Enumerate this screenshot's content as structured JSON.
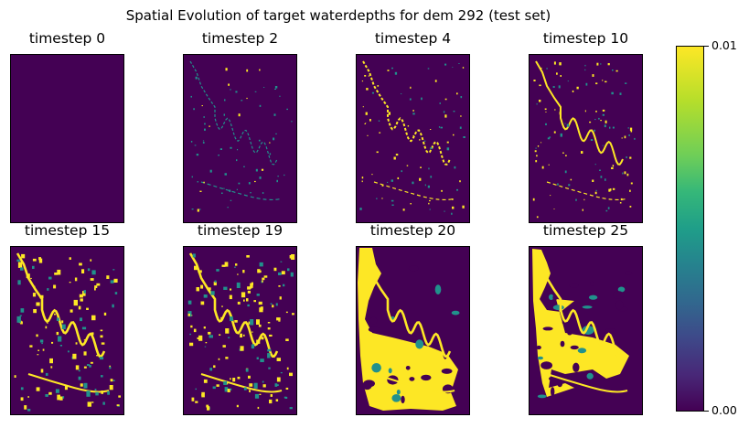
{
  "chart_data": {
    "type": "heatmap",
    "title": "Spatial Evolution of target waterdepths for dem 292 (test set)",
    "panels": [
      {
        "title": "timestep 0",
        "level": 0
      },
      {
        "title": "timestep 2",
        "level": 1
      },
      {
        "title": "timestep 4",
        "level": 2
      },
      {
        "title": "timestep 10",
        "level": 3
      },
      {
        "title": "timestep 15",
        "level": 4
      },
      {
        "title": "timestep 19",
        "level": 5
      },
      {
        "title": "timestep 20",
        "level": 7
      },
      {
        "title": "timestep 25",
        "level": 6
      }
    ],
    "colorbar": {
      "colormap": "viridis",
      "min_label": "0.00",
      "max_label": "0.01",
      "range": [
        0.0,
        0.01
      ]
    },
    "colors": {
      "background": "#440154",
      "water": "#fde725",
      "mid": "#21918c"
    }
  }
}
